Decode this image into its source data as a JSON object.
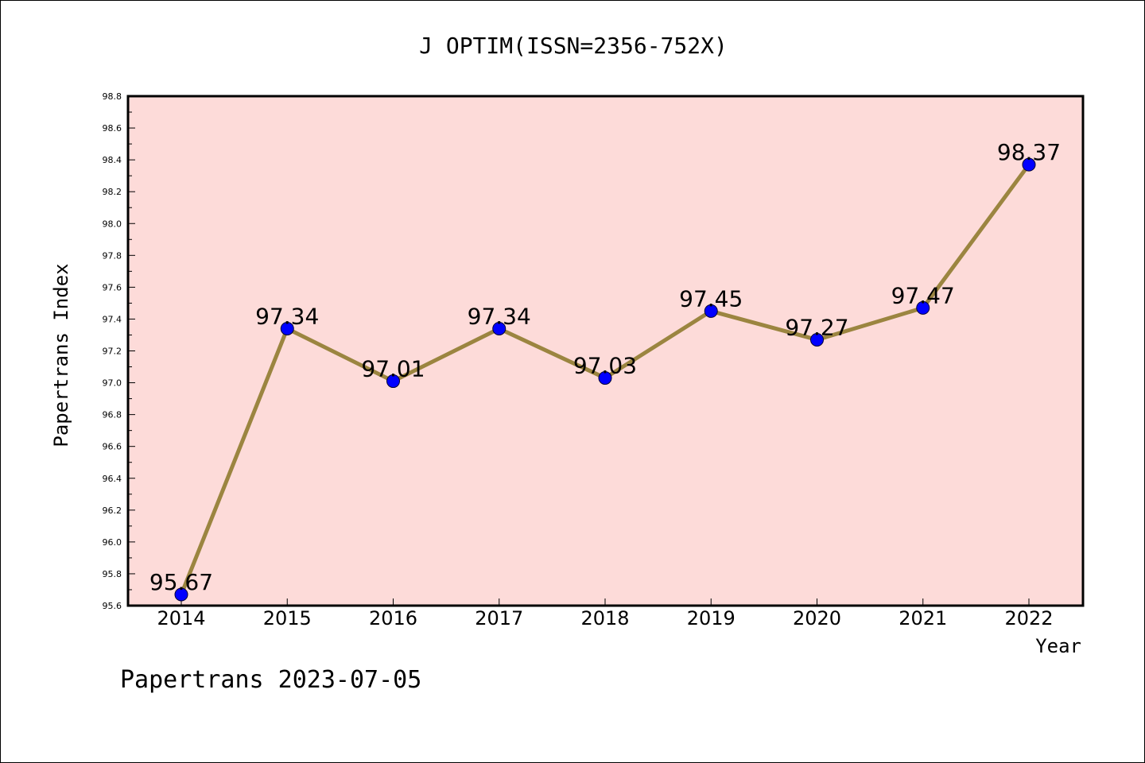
{
  "chart_data": {
    "type": "line",
    "title": "J OPTIM(ISSN=2356-752X)",
    "xlabel": "Year",
    "ylabel": "Papertrans Index",
    "categories": [
      "2014",
      "2015",
      "2016",
      "2017",
      "2018",
      "2019",
      "2020",
      "2021",
      "2022"
    ],
    "values": [
      95.67,
      97.34,
      97.01,
      97.34,
      97.03,
      97.45,
      97.27,
      97.47,
      98.37
    ],
    "data_labels": [
      "95.67",
      "97.34",
      "97.01",
      "97.34",
      "97.03",
      "97.45",
      "97.27",
      "97.47",
      "98.37"
    ],
    "ylim": [
      95.6,
      98.8
    ],
    "yticks": [
      "95.6",
      "95.8",
      "96.0",
      "96.2",
      "96.4",
      "96.6",
      "96.8",
      "97.0",
      "97.2",
      "97.4",
      "97.6",
      "97.8",
      "98.0",
      "98.2",
      "98.4",
      "98.6",
      "98.8"
    ],
    "grid": false,
    "colors": {
      "plot_background": "#fddbd9",
      "line": "#9b8540",
      "marker": "#0000ff"
    }
  },
  "footer": {
    "text": "Papertrans 2023-07-05"
  }
}
